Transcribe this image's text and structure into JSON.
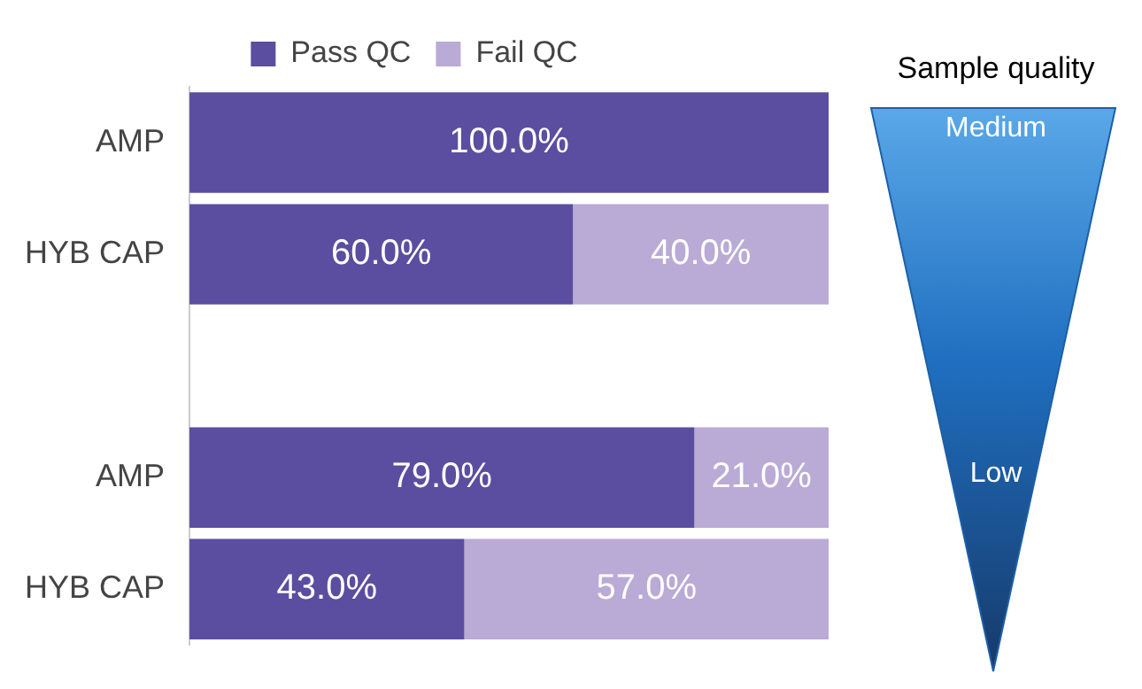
{
  "chart_data": {
    "type": "bar",
    "orientation": "horizontal",
    "stacked": true,
    "categories": [
      "AMP",
      "HYB CAP",
      null,
      "AMP",
      "HYB CAP"
    ],
    "series": [
      {
        "name": "Pass QC",
        "color": "#5b4ea0",
        "values": [
          100,
          60,
          null,
          79,
          43
        ],
        "value_labels": [
          "100.0%",
          "60.0%",
          null,
          "79.0%",
          "43.0%"
        ]
      },
      {
        "name": "Fail QC",
        "color": "#b9aad6",
        "values": [
          0,
          40,
          null,
          21,
          57
        ],
        "value_labels": [
          null,
          "40.0%",
          null,
          "21.0%",
          "57.0%"
        ]
      }
    ],
    "xlim": [
      0,
      100
    ],
    "tick_labels": "y",
    "grid": false,
    "legend": "top",
    "annotations": [
      "Sample quality",
      "Medium",
      "Low"
    ]
  }
}
